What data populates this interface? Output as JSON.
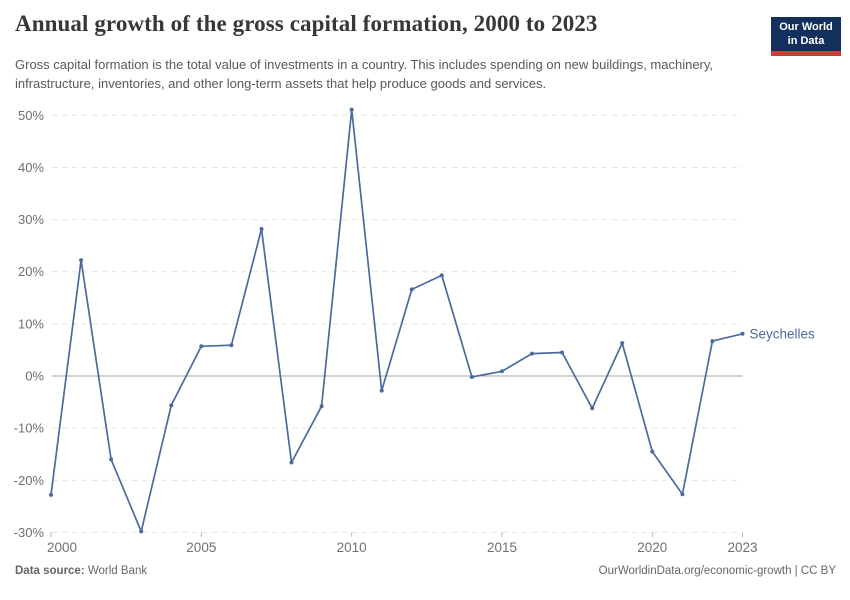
{
  "header": {
    "title": "Annual growth of the gross capital formation, 2000 to 2023",
    "subtitle": "Gross capital formation is the total value of investments in a country. This includes spending on new buildings, machinery, infrastructure, inventories, and other long-term assets that help produce goods and services.",
    "logo": {
      "line1": "Our World",
      "line2": "in Data",
      "bg_color": "#12305b",
      "bar_color": "#cf3c32"
    }
  },
  "chart_data": {
    "type": "line",
    "title": "Annual growth of the gross capital formation, 2000 to 2023",
    "x": [
      2000,
      2001,
      2002,
      2003,
      2004,
      2005,
      2006,
      2007,
      2008,
      2009,
      2010,
      2011,
      2012,
      2013,
      2014,
      2015,
      2016,
      2017,
      2018,
      2019,
      2020,
      2021,
      2022,
      2023
    ],
    "series": [
      {
        "name": "Seychelles",
        "color": "#4c6a9c",
        "values": [
          -22.8,
          22.2,
          -16.0,
          -29.8,
          -5.6,
          5.7,
          5.9,
          28.2,
          -16.6,
          -5.8,
          51.1,
          -2.8,
          16.6,
          19.3,
          -0.2,
          0.9,
          4.3,
          4.5,
          -6.2,
          6.3,
          -14.5,
          -22.7,
          6.7,
          8.1
        ]
      }
    ],
    "xlabel": "",
    "ylabel": "",
    "xlim": [
      2000,
      2023
    ],
    "ylim": [
      -30,
      50
    ],
    "xticks": [
      2000,
      2005,
      2010,
      2015,
      2020,
      2023
    ],
    "yticks": [
      -30,
      -20,
      -10,
      0,
      10,
      20,
      30,
      40,
      50
    ],
    "ytick_suffix": "%",
    "grid": "dashed-horizontal",
    "legend_position": "right-of-last-point",
    "colors": {
      "grid": "#e3e3e3",
      "zero_line": "#a5a5a5",
      "tick_label": "#6f6f6f",
      "tick_mark": "#b5b5b5"
    }
  },
  "footer": {
    "source_label": "Data source:",
    "source_value": " World Bank",
    "url": "OurWorldinData.org/economic-growth",
    "license": " | CC BY"
  }
}
